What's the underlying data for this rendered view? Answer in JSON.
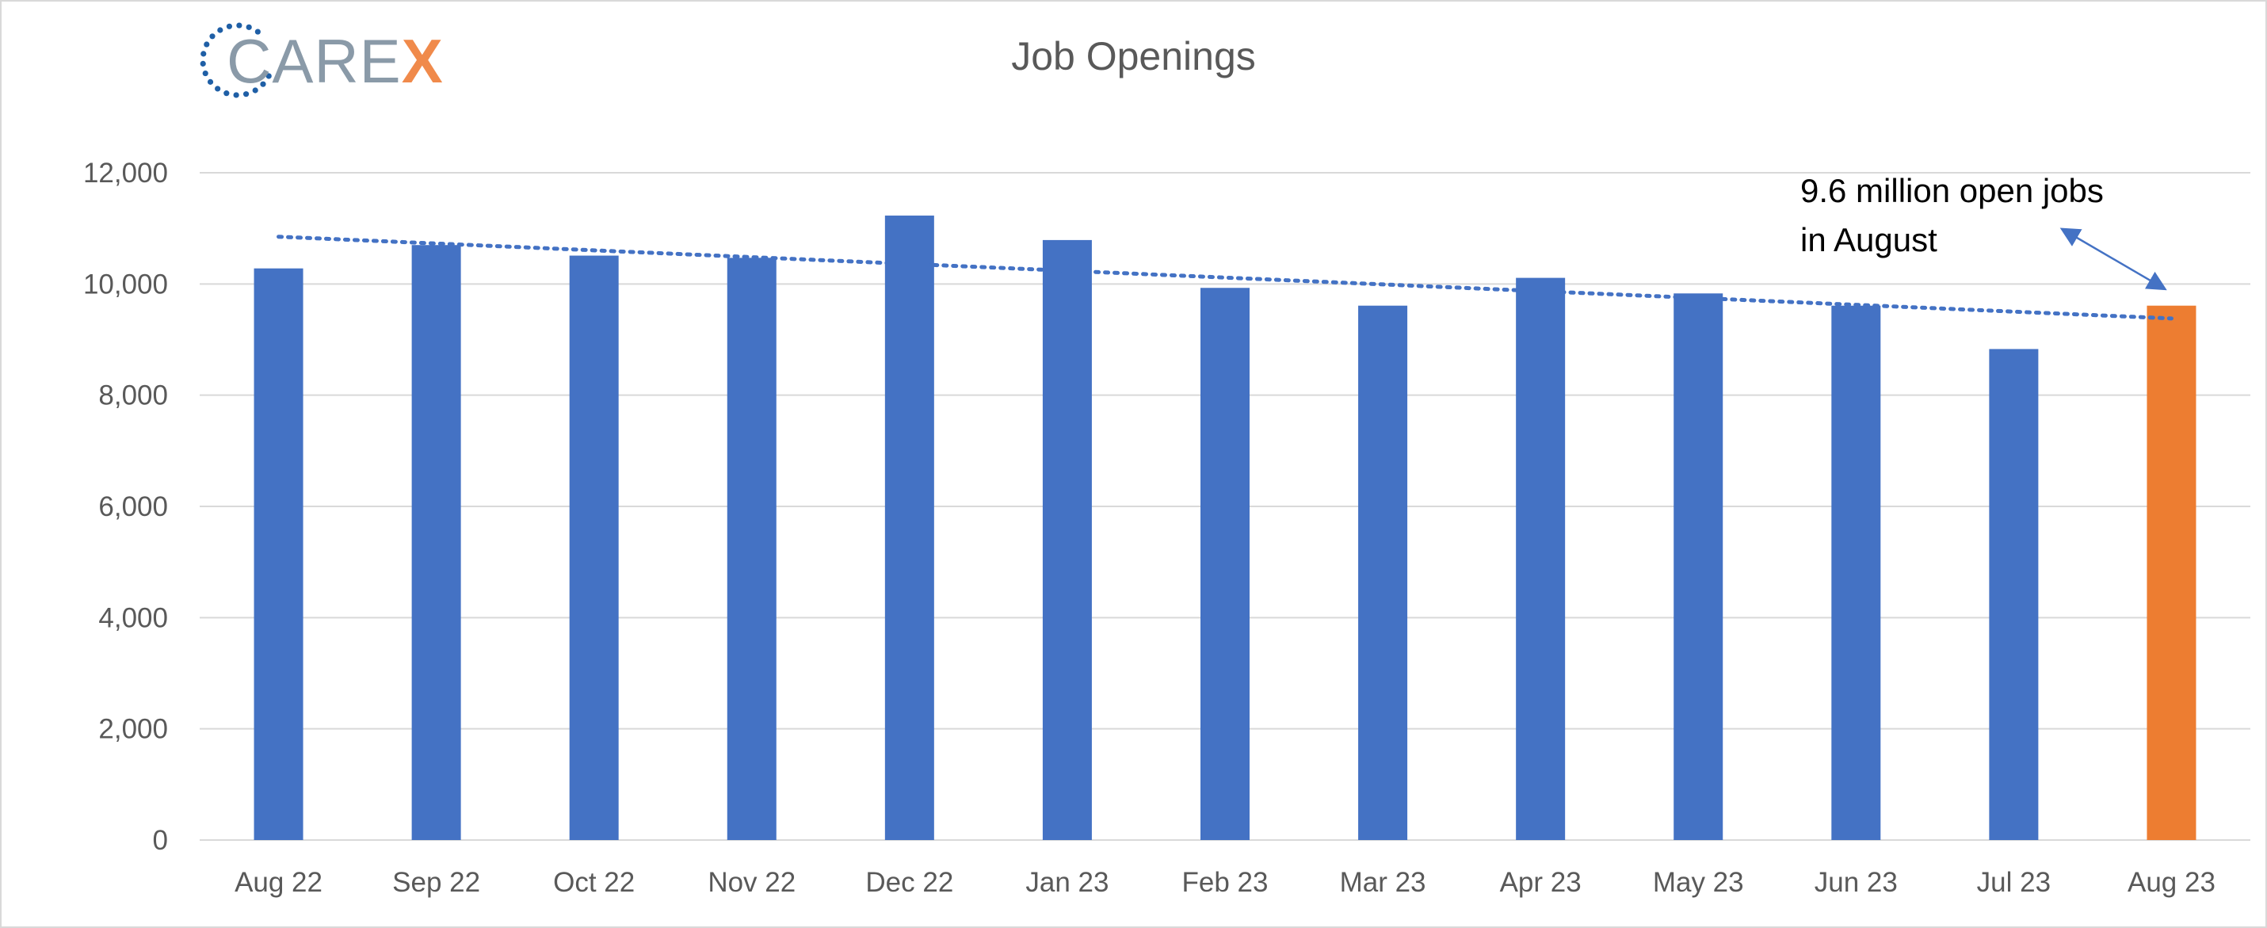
{
  "logo": {
    "text_main": "CARE",
    "text_accent": "X"
  },
  "chart_data": {
    "type": "bar",
    "title": "Job Openings",
    "xlabel": "",
    "ylabel": "",
    "ylim": [
      0,
      12000
    ],
    "yticks": [
      0,
      2000,
      4000,
      6000,
      8000,
      10000,
      12000
    ],
    "ytick_labels": [
      "0",
      "2,000",
      "4,000",
      "6,000",
      "8,000",
      "10,000",
      "12,000"
    ],
    "categories": [
      "Aug 22",
      "Sep 22",
      "Oct 22",
      "Nov 22",
      "Dec 22",
      "Jan 23",
      "Feb 23",
      "Mar 23",
      "Apr 23",
      "May 23",
      "Jun 23",
      "Jul 23",
      "Aug 23"
    ],
    "values": [
      10280,
      10700,
      10510,
      10470,
      11230,
      10790,
      9930,
      9610,
      10110,
      9830,
      9610,
      8830,
      9610
    ],
    "highlight_index": 12,
    "trendline": {
      "type": "linear",
      "style": "dotted",
      "start": 10850,
      "end": 9380
    },
    "grid": true,
    "annotations": [
      {
        "line1": "9.6 million open jobs",
        "line2": "in August",
        "points_to": "Aug 23"
      }
    ]
  },
  "colors": {
    "bar": "#4472c4",
    "highlight_bar": "#ed7d31",
    "trendline": "#4472c4",
    "grid": "#d9d9d9",
    "axis_text": "#595959",
    "logo_dots": "#1f5fa6",
    "logo_text": "#8a9aa8",
    "logo_accent": "#f08a4b"
  }
}
